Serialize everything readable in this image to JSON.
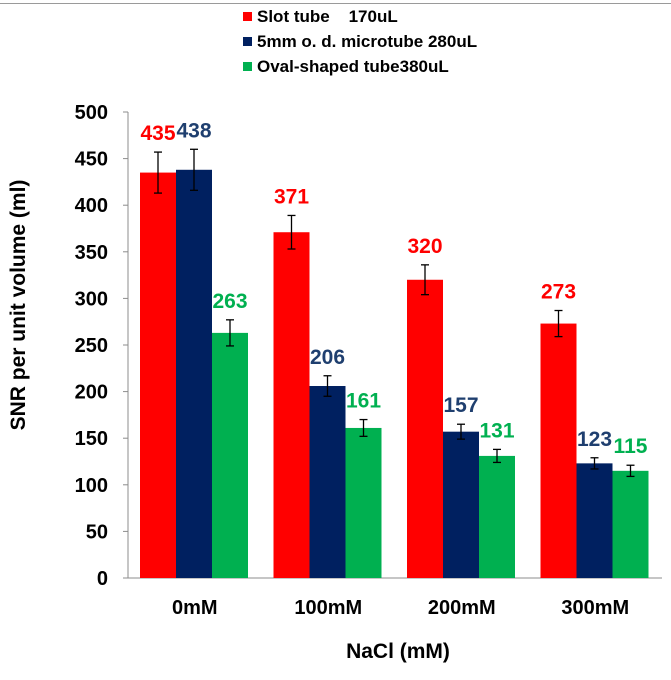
{
  "chart_data": {
    "type": "bar",
    "categories": [
      "0mM",
      "100mM",
      "200mM",
      "300mM"
    ],
    "series": [
      {
        "name": "Slot tube    170uL",
        "color": "#ff0000",
        "label_color": "#ff0000",
        "values": [
          435,
          371,
          320,
          273
        ],
        "errors": [
          22,
          18,
          16,
          14
        ],
        "labels": [
          "435",
          "371",
          "320",
          "273"
        ]
      },
      {
        "name": "5mm o. d. microtube 280uL",
        "color": "#002060",
        "label_color": "#1f3f6f",
        "values": [
          438,
          206,
          157,
          123
        ],
        "errors": [
          22,
          11,
          8,
          6
        ],
        "labels": [
          "438",
          "206",
          "157",
          "123"
        ]
      },
      {
        "name": "Oval-shaped tube380uL",
        "color": "#00b050",
        "label_color": "#00b050",
        "values": [
          263,
          161,
          131,
          115
        ],
        "errors": [
          14,
          9,
          7,
          6
        ],
        "labels": [
          "263",
          "161",
          "131",
          "115"
        ]
      }
    ],
    "xlabel": "NaCl (mM)",
    "ylabel": "SNR per unit volume (ml)",
    "ylim": [
      0,
      500
    ],
    "yticks": [
      "0",
      "50",
      "100",
      "150",
      "200",
      "250",
      "300",
      "350",
      "400",
      "450",
      "500"
    ],
    "grid": false,
    "legend": "top"
  }
}
